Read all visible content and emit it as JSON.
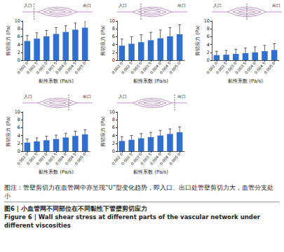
{
  "chart_data": [
    {
      "type": "bar",
      "annotations": [
        "入口",
        "出口"
      ],
      "categories": [
        "0.002 0",
        "0.002 5",
        "0.003 0",
        "0.003 5",
        "0.004 0",
        "0.004 5",
        "0.005 0"
      ],
      "values": [
        4.9,
        5.5,
        6.1,
        6.7,
        7.2,
        7.8,
        8.3
      ],
      "errors": [
        1.4,
        1.5,
        1.5,
        1.6,
        1.6,
        1.7,
        1.8
      ],
      "color": "#2f6fd0",
      "x_label": "黏性系数 (Pa/s)",
      "y_label": "剪切应力 (Pa)",
      "ylim": [
        0,
        10
      ],
      "yticks": [
        0,
        2,
        4,
        6,
        8,
        10
      ],
      "grid": false
    },
    {
      "type": "bar",
      "annotations": [
        "入口",
        "出口"
      ],
      "categories": [
        "0.002 0",
        "0.002 5",
        "0.003 0",
        "0.003 5",
        "0.004 0",
        "0.004 5",
        "0.005 0"
      ],
      "values": [
        3.7,
        4.2,
        4.6,
        5.1,
        5.6,
        6.1,
        6.6
      ],
      "errors": [
        1.7,
        1.8,
        1.9,
        2.0,
        2.1,
        2.2,
        2.4
      ],
      "color": "#2f6fd0",
      "x_label": "黏性系数 (Pa/s)",
      "y_label": "剪切应力 (Pa)",
      "ylim": [
        0,
        10
      ],
      "yticks": [
        0,
        2,
        4,
        6,
        8,
        10
      ],
      "grid": false
    },
    {
      "type": "bar",
      "annotations": [
        "入口",
        "出口"
      ],
      "categories": [
        "0.002 0",
        "0.002 5",
        "0.003 0",
        "0.003 5",
        "0.004 0",
        "0.004 5",
        "0.005 0"
      ],
      "values": [
        1.3,
        1.4,
        1.6,
        1.8,
        2.0,
        2.3,
        2.6
      ],
      "errors": [
        1.0,
        1.1,
        1.2,
        1.3,
        1.4,
        1.5,
        1.6
      ],
      "color": "#2f6fd0",
      "x_label": "黏性系数 (Pa/s)",
      "y_label": "剪切应力 (Pa)",
      "ylim": [
        0,
        10
      ],
      "yticks": [
        0,
        2,
        4,
        6,
        8,
        10
      ],
      "grid": false
    },
    {
      "type": "bar",
      "annotations": [
        "入口",
        "出口"
      ],
      "categories": [
        "0.002 0",
        "0.002 5",
        "0.003 0",
        "0.003 5",
        "0.004 0",
        "0.004 5",
        "0.005 0"
      ],
      "values": [
        2.2,
        2.5,
        2.8,
        3.1,
        3.5,
        3.9,
        4.3
      ],
      "errors": [
        0.9,
        0.9,
        1.0,
        1.0,
        1.1,
        1.2,
        1.2
      ],
      "color": "#2f6fd0",
      "x_label": "黏性系数 (Pa/s)",
      "y_label": "剪切应力 (Pa)",
      "ylim": [
        0,
        10
      ],
      "yticks": [
        0,
        2,
        4,
        6,
        8,
        10
      ],
      "grid": false
    },
    {
      "type": "bar",
      "annotations": [
        "入口",
        "出口"
      ],
      "categories": [
        "0.002 0",
        "0.002 5",
        "0.003 0",
        "0.003 5",
        "0.004 0",
        "0.004 5",
        "0.005 0"
      ],
      "values": [
        2.6,
        2.9,
        3.3,
        3.6,
        4.0,
        4.4,
        4.8
      ],
      "errors": [
        1.1,
        1.1,
        1.2,
        1.2,
        1.3,
        1.3,
        1.4
      ],
      "color": "#2f6fd0",
      "x_label": "黏性系数 (Pa/s)",
      "y_label": "剪切应力 (Pa)",
      "ylim": [
        0,
        10
      ],
      "yticks": [
        0,
        2,
        4,
        6,
        8,
        10
      ],
      "grid": false
    }
  ],
  "caption": {
    "note": "图注：管壁剪切力在血管网中亦呈现“U”型变化趋势，即入口、出口处管壁剪切力大，血管分支处小",
    "title_cn": "图6 | 小血管网不同部位在不同黏性下管壁剪切应力",
    "title_en": "Figure 6 | Wall shear stress at different parts of the vascular network under different viscosities"
  }
}
